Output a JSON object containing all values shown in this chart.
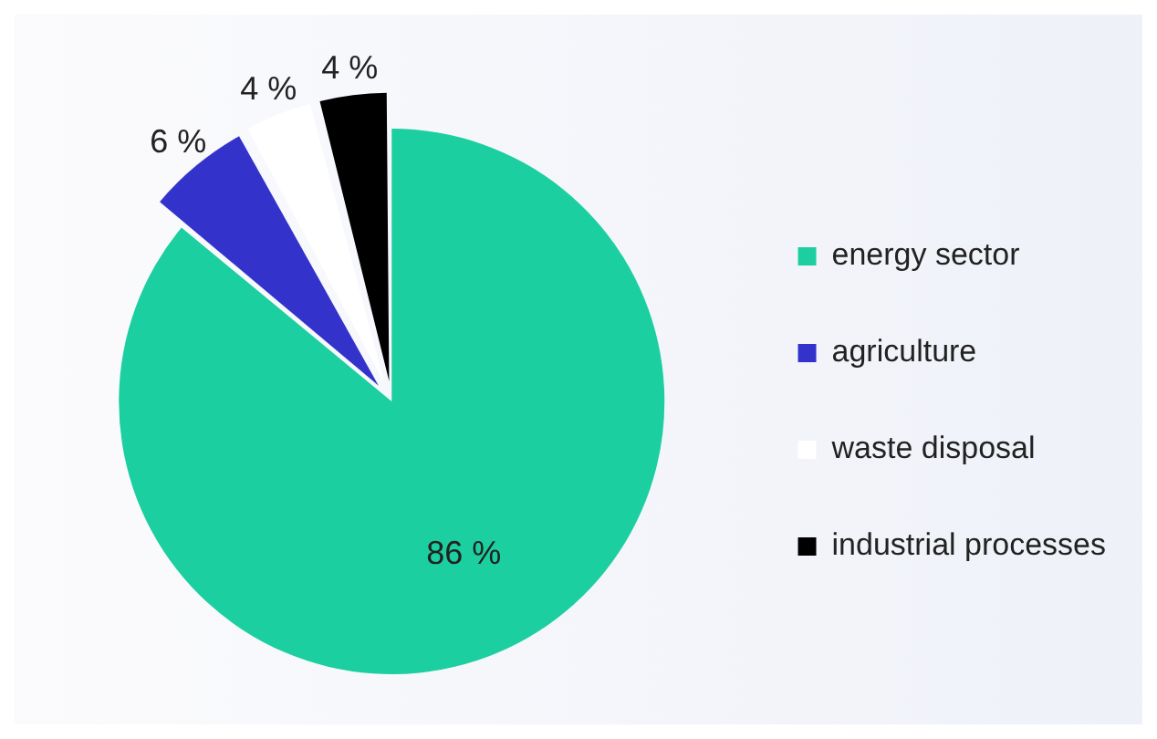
{
  "chart_data": {
    "type": "pie",
    "categories": [
      "energy sector",
      "agriculture",
      "waste disposal",
      "industrial processes"
    ],
    "values": [
      86,
      6,
      4,
      4
    ],
    "colors": [
      "#1ccfa0",
      "#3333cc",
      "#ffffff",
      "#000000"
    ],
    "value_labels": [
      "86 %",
      "6 %",
      "4 %",
      "4 %"
    ],
    "legend": "right"
  }
}
